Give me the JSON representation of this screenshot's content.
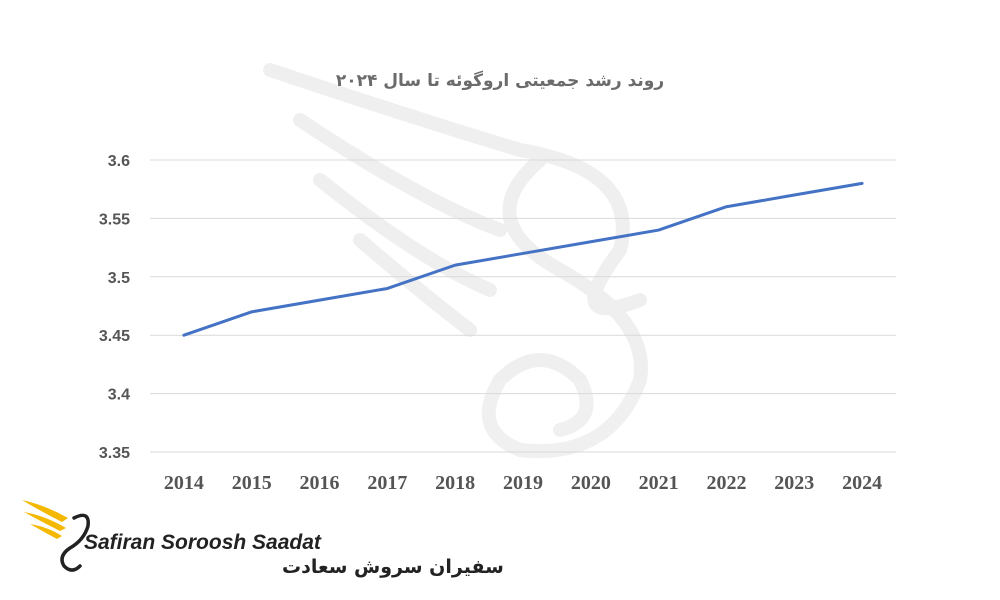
{
  "chart_data": {
    "type": "line",
    "title": "روند رشد جمعیتی اروگوئه تا سال ۲۰۲۴",
    "xlabel": "",
    "ylabel": "",
    "categories": [
      "2014",
      "2015",
      "2016",
      "2017",
      "2018",
      "2019",
      "2020",
      "2021",
      "2022",
      "2023",
      "2024"
    ],
    "series": [
      {
        "values": [
          3.45,
          3.47,
          3.48,
          3.49,
          3.51,
          3.52,
          3.53,
          3.54,
          3.56,
          3.57,
          3.58
        ]
      }
    ],
    "yticks": [
      "3.35",
      "3.4",
      "3.45",
      "3.5",
      "3.55",
      "3.6"
    ],
    "ylim": [
      3.35,
      3.6
    ],
    "grid": true,
    "legend": "none",
    "line_color": "#4472c4"
  },
  "logo": {
    "name_en": "Safiran Soroosh Saadat",
    "name_fa": "سفیران سروش سعادت",
    "accent_color": "#f5b800"
  }
}
